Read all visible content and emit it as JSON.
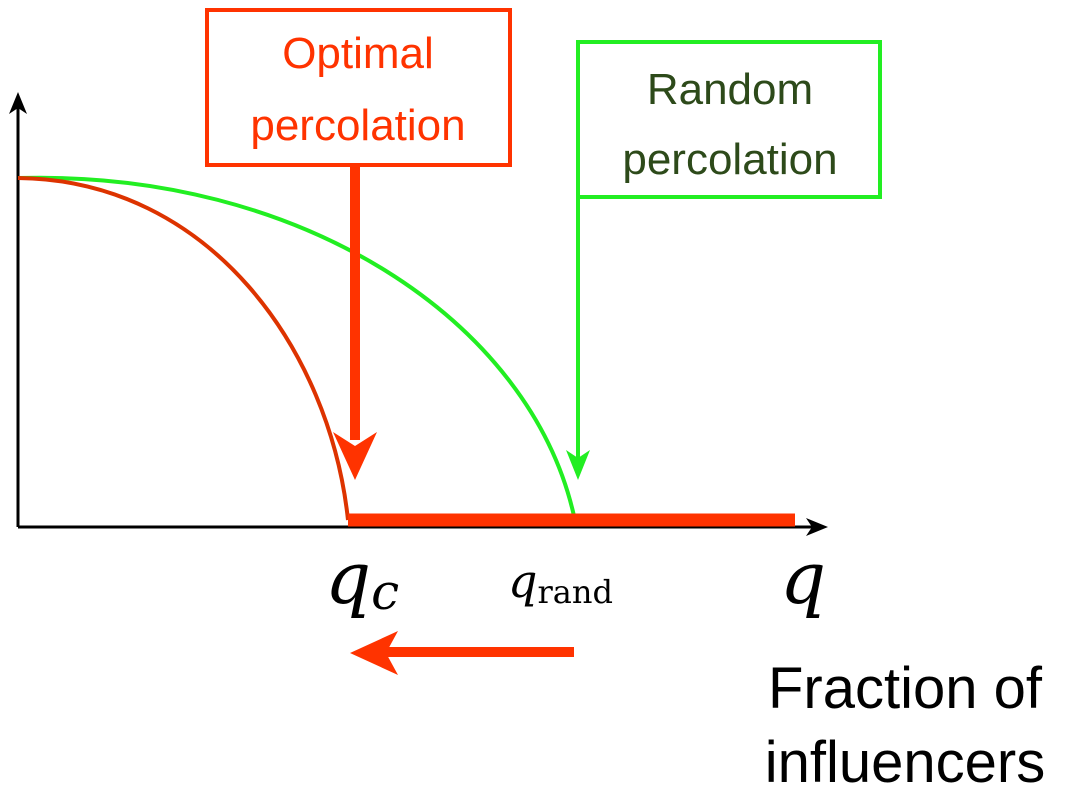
{
  "optimal_box": {
    "lines": [
      "Optimal",
      "percolation"
    ]
  },
  "random_box": {
    "lines": [
      "Random",
      "percolation"
    ]
  },
  "x_axis": {
    "q_c": {
      "base": "q",
      "sub": "c"
    },
    "q_rand": {
      "base": "q",
      "sub": "rand"
    },
    "q": "q",
    "caption": [
      "Fraction of",
      "influencers"
    ]
  }
}
